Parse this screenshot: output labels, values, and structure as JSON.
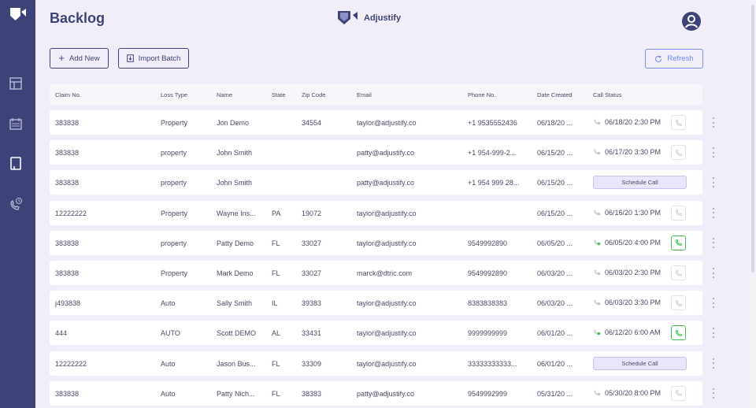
{
  "header": {
    "title": "Backlog",
    "brand": "Adjustify"
  },
  "toolbar": {
    "add_label": "Add New",
    "import_label": "Import Batch",
    "refresh_label": "Refresh"
  },
  "colors": {
    "sidebar": "#3d4278",
    "accent": "#6d82ee",
    "call_active": "#3fc24f",
    "schedule_bg": "#e9e5fb"
  },
  "sidebar": {
    "icons": [
      "shield-logo-icon",
      "table-icon",
      "calendar-icon",
      "document-icon",
      "phone-history-icon"
    ]
  },
  "table": {
    "columns": [
      "Claim No.",
      "Loss Type",
      "Name",
      "State",
      "Zip Code",
      "Email",
      "Phone No.",
      "Date Created",
      "Call Status"
    ],
    "schedule_label": "Schedule Call",
    "rows": [
      {
        "claim": "383838",
        "loss": "Property",
        "name": "Jon Demo",
        "state": "",
        "zip": "34554",
        "email": "taylor@adjustify.co",
        "phone": "+1 9535552436",
        "created": "06/18/20 ...",
        "status": "06/18/20 2:30 PM",
        "call_active": false
      },
      {
        "claim": "383838",
        "loss": "property",
        "name": "John Smith",
        "state": "",
        "zip": "",
        "email": "patty@adjustify.co",
        "phone": "+1 954-999-2...",
        "created": "06/15/20 ...",
        "status": "06/17/20 3:30 PM",
        "call_active": false
      },
      {
        "claim": "383838",
        "loss": "property",
        "name": "John Smith",
        "state": "",
        "zip": "",
        "email": "patty@adjustify.co",
        "phone": "+1 954 999 28...",
        "created": "06/15/20 ...",
        "status": "",
        "call_active": false
      },
      {
        "claim": "12222222",
        "loss": "Property",
        "name": "Wayne Ins...",
        "state": "PA",
        "zip": "19072",
        "email": "taylor@adjustify.co",
        "phone": "",
        "created": "06/15/20 ...",
        "status": "06/16/20 1:30 PM",
        "call_active": false
      },
      {
        "claim": "383838",
        "loss": "property",
        "name": "Patty Demo",
        "state": "FL",
        "zip": "33027",
        "email": "taylor@adjustify.co",
        "phone": "9549992890",
        "created": "06/05/20 ...",
        "status": "06/05/20 4:00 PM",
        "call_active": true
      },
      {
        "claim": "383838",
        "loss": "Property",
        "name": "Mark Demo",
        "state": "FL",
        "zip": "33027",
        "email": "marck@dtric.com",
        "phone": "9549992890",
        "created": "06/03/20 ...",
        "status": "06/03/20 2:30 PM",
        "call_active": false
      },
      {
        "claim": "j493838",
        "loss": "Auto",
        "name": "Sally Smith",
        "state": "IL",
        "zip": "39383",
        "email": "taylor@adjustify.co",
        "phone": "8383838383",
        "created": "06/03/20 ...",
        "status": "06/03/20 3:30 PM",
        "call_active": false
      },
      {
        "claim": "444",
        "loss": "AUTO",
        "name": "Scott DEMO",
        "state": "AL",
        "zip": "33431",
        "email": "taylor@adjustify.co",
        "phone": "9999999999",
        "created": "06/01/20 ...",
        "status": "06/12/20 6:00 AM",
        "call_active": true
      },
      {
        "claim": "12222222",
        "loss": "Auto",
        "name": "Jason Bus...",
        "state": "FL",
        "zip": "33309",
        "email": "taylor@adjustify.co",
        "phone": "33333333333...",
        "created": "06/01/20 ...",
        "status": "",
        "call_active": false
      },
      {
        "claim": "383838",
        "loss": "Auto",
        "name": "Patty Nich...",
        "state": "FL",
        "zip": "38383",
        "email": "patty@adjustify.co",
        "phone": "9549992999",
        "created": "05/31/20 ...",
        "status": "05/30/20 8:00 PM",
        "call_active": false
      }
    ]
  }
}
